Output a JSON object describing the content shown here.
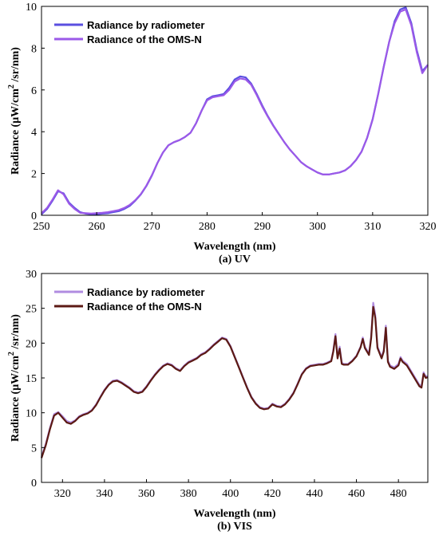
{
  "chart_data": [
    {
      "type": "line",
      "caption": "(a) UV",
      "xlabel": "Wavelength (nm)",
      "ylabel_main": "Radiance (μW/cm",
      "ylabel_sup": "2",
      "ylabel_tail": " /sr/nm)",
      "xlim": [
        250,
        320
      ],
      "ylim": [
        0,
        10
      ],
      "xticks": [
        "250",
        "260",
        "270",
        "280",
        "290",
        "300",
        "310",
        "320"
      ],
      "yticks": [
        "0",
        "2",
        "4",
        "6",
        "8",
        "10"
      ],
      "legend_position": "top-left",
      "series": [
        {
          "name": "Radiance by radiometer",
          "color": "#5a4fe0",
          "x": [
            250,
            251,
            252,
            253,
            254,
            255,
            256,
            257,
            258,
            259,
            260,
            261,
            262,
            263,
            264,
            265,
            266,
            267,
            268,
            269,
            270,
            271,
            272,
            273,
            274,
            275,
            276,
            277,
            278,
            279,
            280,
            281,
            282,
            283,
            284,
            285,
            286,
            287,
            288,
            289,
            290,
            291,
            292,
            293,
            294,
            295,
            296,
            297,
            298,
            299,
            300,
            301,
            302,
            303,
            304,
            305,
            306,
            307,
            308,
            309,
            310,
            311,
            312,
            313,
            314,
            315,
            316,
            317,
            318,
            319,
            320
          ],
          "y": [
            0.05,
            0.3,
            0.7,
            1.15,
            1.05,
            0.6,
            0.35,
            0.15,
            0.08,
            0.05,
            0.05,
            0.08,
            0.1,
            0.15,
            0.2,
            0.3,
            0.45,
            0.7,
            1.0,
            1.4,
            1.9,
            2.5,
            3.0,
            3.35,
            3.5,
            3.6,
            3.75,
            3.95,
            4.4,
            5.0,
            5.55,
            5.7,
            5.75,
            5.8,
            6.1,
            6.5,
            6.65,
            6.6,
            6.3,
            5.8,
            5.25,
            4.75,
            4.3,
            3.9,
            3.5,
            3.15,
            2.85,
            2.55,
            2.35,
            2.2,
            2.05,
            1.95,
            1.95,
            2.0,
            2.05,
            2.15,
            2.35,
            2.65,
            3.05,
            3.7,
            4.6,
            5.8,
            7.1,
            8.3,
            9.3,
            9.85,
            9.95,
            9.2,
            7.9,
            6.9,
            7.2
          ]
        },
        {
          "name": "Radiance of the OMS-N",
          "color": "#9b59e8",
          "x": [
            250,
            251,
            252,
            253,
            254,
            255,
            256,
            257,
            258,
            259,
            260,
            261,
            262,
            263,
            264,
            265,
            266,
            267,
            268,
            269,
            270,
            271,
            272,
            273,
            274,
            275,
            276,
            277,
            278,
            279,
            280,
            281,
            282,
            283,
            284,
            285,
            286,
            287,
            288,
            289,
            290,
            291,
            292,
            293,
            294,
            295,
            296,
            297,
            298,
            299,
            300,
            301,
            302,
            303,
            304,
            305,
            306,
            307,
            308,
            309,
            310,
            311,
            312,
            313,
            314,
            315,
            316,
            317,
            318,
            319,
            320
          ],
          "y": [
            0.1,
            0.35,
            0.75,
            1.2,
            1.0,
            0.55,
            0.3,
            0.12,
            0.1,
            0.08,
            0.1,
            0.12,
            0.15,
            0.2,
            0.25,
            0.35,
            0.5,
            0.72,
            1.02,
            1.42,
            1.92,
            2.5,
            3.0,
            3.35,
            3.5,
            3.6,
            3.75,
            3.95,
            4.4,
            5.0,
            5.5,
            5.65,
            5.7,
            5.75,
            6.0,
            6.4,
            6.55,
            6.5,
            6.25,
            5.75,
            5.2,
            4.72,
            4.28,
            3.88,
            3.5,
            3.15,
            2.85,
            2.55,
            2.35,
            2.2,
            2.05,
            1.95,
            1.95,
            2.0,
            2.05,
            2.15,
            2.35,
            2.65,
            3.05,
            3.7,
            4.6,
            5.8,
            7.1,
            8.3,
            9.2,
            9.75,
            9.85,
            9.1,
            7.8,
            6.8,
            7.2
          ]
        }
      ]
    },
    {
      "type": "line",
      "caption": "(b) VIS",
      "xlabel": "Wavelength (nm)",
      "ylabel_main": "Radiance (μW/cm",
      "ylabel_sup": "2",
      "ylabel_tail": " /sr/nm)",
      "xlim": [
        310,
        494
      ],
      "ylim": [
        0,
        30
      ],
      "xticks": [
        "320",
        "340",
        "360",
        "380",
        "400",
        "420",
        "440",
        "460",
        "480"
      ],
      "yticks": [
        "0",
        "5",
        "10",
        "15",
        "20",
        "25",
        "30"
      ],
      "legend_position": "top-left",
      "series": [
        {
          "name": "Radiance by radiometer",
          "color": "#b08ce0",
          "x": [
            310,
            312,
            314,
            316,
            318,
            320,
            322,
            324,
            326,
            328,
            330,
            332,
            334,
            336,
            338,
            340,
            342,
            344,
            346,
            348,
            350,
            352,
            354,
            356,
            358,
            360,
            362,
            364,
            366,
            368,
            370,
            372,
            374,
            376,
            378,
            380,
            382,
            384,
            386,
            388,
            390,
            392,
            394,
            396,
            398,
            400,
            402,
            404,
            406,
            408,
            410,
            412,
            414,
            416,
            418,
            420,
            422,
            424,
            426,
            428,
            430,
            432,
            434,
            436,
            438,
            440,
            442,
            444,
            446,
            448,
            449,
            450,
            451,
            452,
            453,
            454,
            456,
            458,
            460,
            462,
            463,
            464,
            466,
            467,
            468,
            469,
            470,
            472,
            473,
            474,
            475,
            476,
            478,
            480,
            481,
            482,
            484,
            486,
            488,
            490,
            491,
            492,
            493,
            494
          ],
          "y": [
            3.7,
            5.5,
            7.8,
            9.8,
            10.1,
            9.5,
            8.8,
            8.6,
            8.9,
            9.5,
            9.8,
            10.0,
            10.4,
            11.2,
            12.3,
            13.3,
            14.1,
            14.6,
            14.7,
            14.4,
            14.0,
            13.6,
            13.1,
            12.9,
            13.1,
            13.8,
            14.7,
            15.5,
            16.2,
            16.8,
            17.1,
            16.9,
            16.4,
            16.1,
            16.8,
            17.3,
            17.6,
            17.9,
            18.4,
            18.7,
            19.2,
            19.8,
            20.3,
            20.8,
            20.6,
            19.6,
            18.1,
            16.6,
            15.1,
            13.6,
            12.3,
            11.4,
            10.8,
            10.6,
            10.7,
            11.3,
            11.0,
            10.9,
            11.3,
            12.0,
            12.9,
            14.2,
            15.6,
            16.4,
            16.8,
            16.9,
            17.0,
            17.0,
            17.2,
            17.5,
            19.0,
            21.3,
            18.0,
            19.5,
            17.2,
            17.0,
            17.0,
            17.5,
            18.2,
            19.5,
            20.8,
            19.5,
            18.5,
            21.0,
            25.8,
            24.0,
            19.5,
            18.0,
            19.0,
            22.5,
            17.5,
            16.8,
            16.5,
            17.0,
            18.0,
            17.5,
            17.0,
            16.0,
            15.0,
            14.0,
            13.8,
            15.8,
            15.2,
            15.3
          ]
        },
        {
          "name": "Radiance of the OMS-N",
          "color": "#5c1a14",
          "x": [
            310,
            312,
            314,
            316,
            318,
            320,
            322,
            324,
            326,
            328,
            330,
            332,
            334,
            336,
            338,
            340,
            342,
            344,
            346,
            348,
            350,
            352,
            354,
            356,
            358,
            360,
            362,
            364,
            366,
            368,
            370,
            372,
            374,
            376,
            378,
            380,
            382,
            384,
            386,
            388,
            390,
            392,
            394,
            396,
            398,
            400,
            402,
            404,
            406,
            408,
            410,
            412,
            414,
            416,
            418,
            420,
            422,
            424,
            426,
            428,
            430,
            432,
            434,
            436,
            438,
            440,
            442,
            444,
            446,
            448,
            449,
            450,
            451,
            452,
            453,
            454,
            456,
            458,
            460,
            462,
            463,
            464,
            466,
            467,
            468,
            469,
            470,
            472,
            473,
            474,
            475,
            476,
            478,
            480,
            481,
            482,
            484,
            486,
            488,
            490,
            491,
            492,
            493,
            494
          ],
          "y": [
            3.5,
            5.3,
            7.6,
            9.6,
            10.0,
            9.3,
            8.6,
            8.4,
            8.8,
            9.4,
            9.7,
            9.9,
            10.3,
            11.1,
            12.2,
            13.2,
            14.0,
            14.5,
            14.6,
            14.3,
            13.9,
            13.5,
            13.0,
            12.8,
            13.0,
            13.7,
            14.6,
            15.4,
            16.1,
            16.7,
            17.0,
            16.8,
            16.3,
            16.0,
            16.7,
            17.2,
            17.5,
            17.8,
            18.3,
            18.6,
            19.1,
            19.7,
            20.2,
            20.7,
            20.5,
            19.5,
            18.0,
            16.5,
            15.0,
            13.5,
            12.2,
            11.3,
            10.7,
            10.5,
            10.6,
            11.2,
            10.9,
            10.8,
            11.2,
            11.9,
            12.8,
            14.1,
            15.5,
            16.3,
            16.7,
            16.8,
            16.9,
            16.9,
            17.1,
            17.4,
            18.8,
            21.0,
            17.8,
            19.2,
            17.0,
            16.9,
            16.9,
            17.4,
            18.1,
            19.4,
            20.6,
            19.3,
            18.3,
            20.7,
            25.2,
            23.6,
            19.3,
            17.8,
            18.8,
            22.2,
            17.3,
            16.6,
            16.3,
            16.8,
            17.8,
            17.3,
            16.8,
            15.8,
            14.8,
            13.8,
            13.6,
            15.6,
            15.0,
            15.1
          ]
        }
      ]
    }
  ]
}
